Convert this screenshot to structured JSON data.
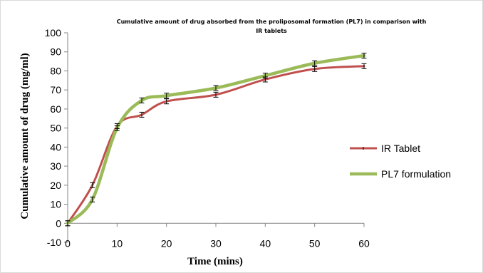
{
  "chart_data": {
    "type": "line",
    "title": "Cumulative amount of drug absorbed from the proliposomal formation (PL7) in comparison with IR tablets",
    "title_lines": [
      "Cumulative  amount  of drug absorbed from the proliposomal  formation  (PL7) in comparison with",
      "IR tablets"
    ],
    "xlabel": "Time (mins)",
    "ylabel": "Cumulative amount of drug (mg/ml)",
    "x": [
      0,
      5,
      10,
      15,
      20,
      30,
      40,
      50,
      60
    ],
    "xlim": [
      0,
      60
    ],
    "ylim": [
      -10,
      100
    ],
    "x_ticks": [
      0,
      10,
      20,
      30,
      40,
      50,
      60
    ],
    "y_ticks": [
      -10,
      0,
      10,
      20,
      30,
      40,
      50,
      60,
      70,
      80,
      90,
      100
    ],
    "grid": false,
    "legend_position": "right",
    "series": [
      {
        "name": "IR Tablet",
        "color": "#c0504d",
        "values": [
          0,
          20,
          51,
          57,
          64,
          67.5,
          75.5,
          81,
          82.5
        ]
      },
      {
        "name": "PL7 formulation",
        "color": "#9bbb59",
        "values": [
          0,
          12.5,
          50,
          64.5,
          67,
          71,
          77.5,
          84,
          88
        ]
      }
    ]
  }
}
